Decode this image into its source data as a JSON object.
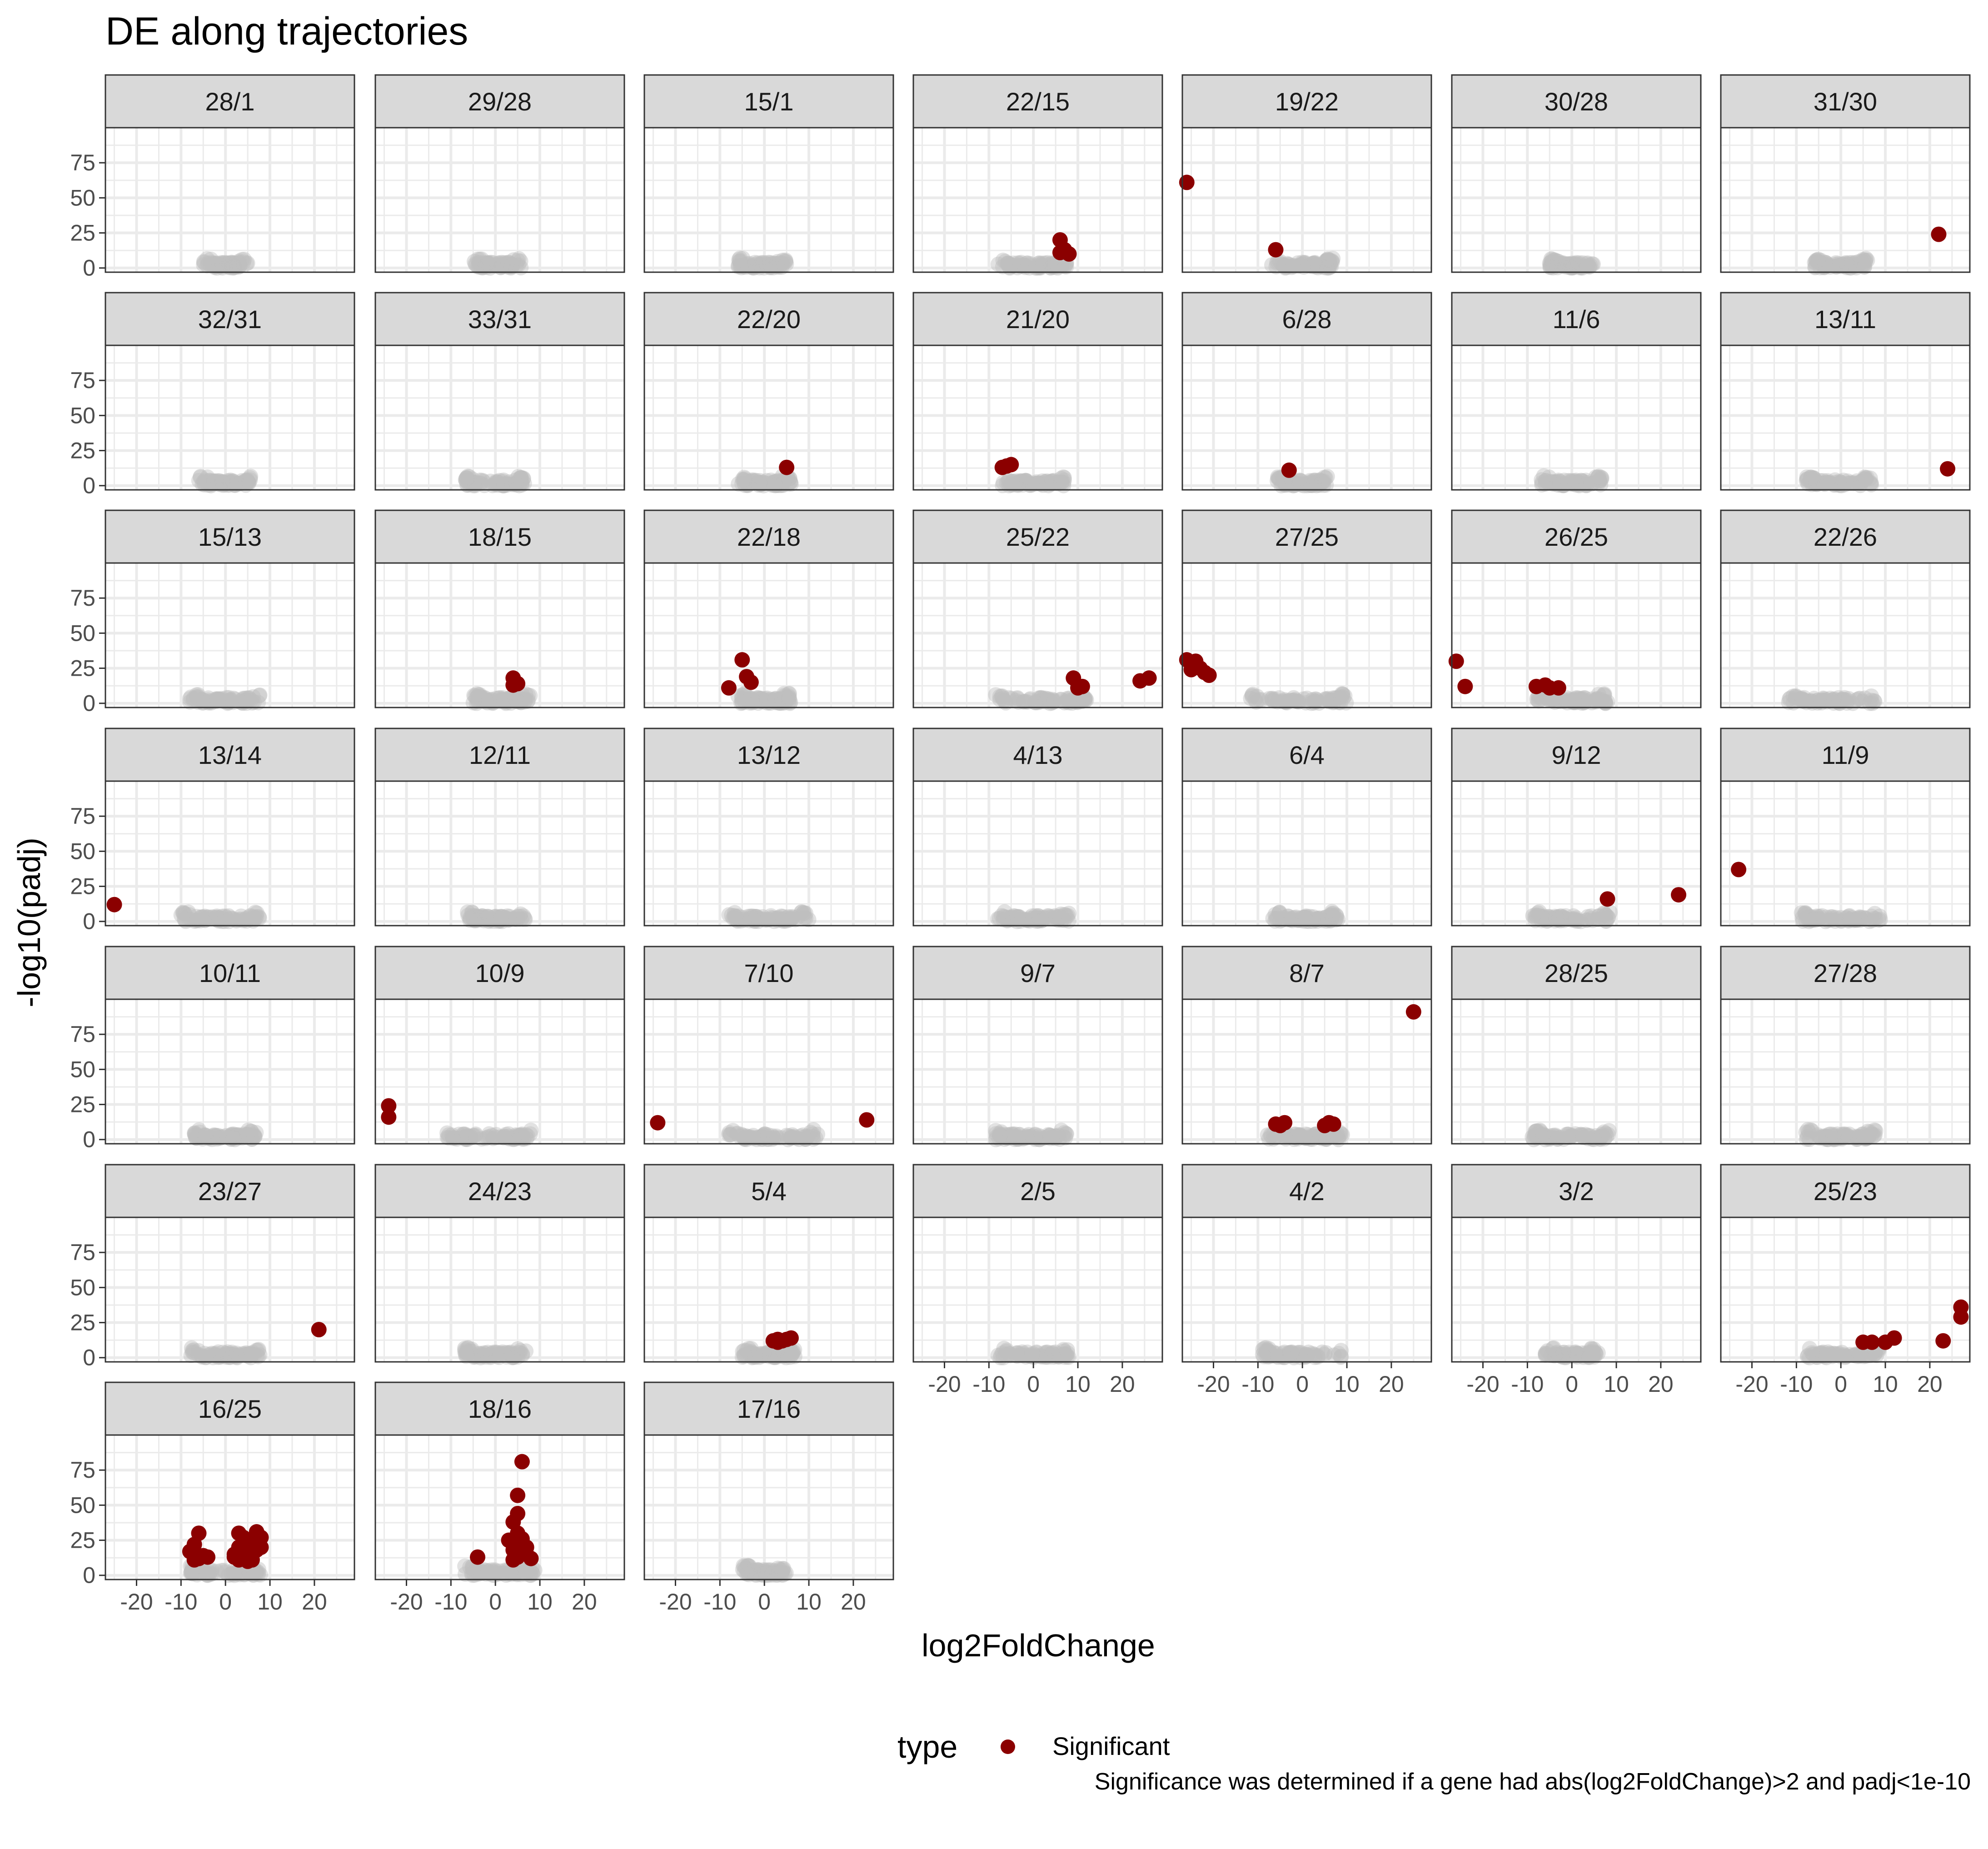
{
  "chart_data": {
    "type": "scatter",
    "title": "DE along trajectories",
    "xlabel": "log2FoldChange",
    "ylabel": "-log10(padj)",
    "xlim": [
      -27,
      29
    ],
    "ylim": [
      -3,
      100
    ],
    "x_ticks": [
      -20,
      -10,
      0,
      10,
      20
    ],
    "x_tick_labels": [
      "-20",
      "-10",
      "0",
      "10",
      "20"
    ],
    "y_ticks": [
      0,
      25,
      50,
      75
    ],
    "y_tick_labels": [
      "0",
      "25",
      "50",
      "75"
    ],
    "grid": true,
    "legend": {
      "title": "type",
      "position": "bottom",
      "entries": [
        {
          "label": "Significant",
          "color": "#8b0000"
        }
      ]
    },
    "caption": "Significance was determined if a gene had abs(log2FoldChange)>2 and padj<1e-10",
    "colors": {
      "significant": "#8b0000",
      "not_significant": "#bebebe",
      "strip_fill": "#d9d9d9",
      "grid": "#ebebeb",
      "panel_border": "#333333"
    },
    "panels": [
      {
        "label": "28/1",
        "bg": [
          -5,
          5
        ],
        "sig": []
      },
      {
        "label": "29/28",
        "bg": [
          -5,
          6
        ],
        "sig": []
      },
      {
        "label": "15/1",
        "bg": [
          -6,
          5
        ],
        "sig": []
      },
      {
        "label": "22/15",
        "bg": [
          -8,
          8
        ],
        "sig": [
          [
            6,
            20
          ],
          [
            7,
            13
          ],
          [
            8,
            10
          ],
          [
            6,
            11
          ]
        ]
      },
      {
        "label": "19/22",
        "bg": [
          -7,
          7
        ],
        "sig": [
          [
            -26,
            61
          ],
          [
            -6,
            13
          ]
        ]
      },
      {
        "label": "30/28",
        "bg": [
          -5,
          5
        ],
        "sig": []
      },
      {
        "label": "31/30",
        "bg": [
          -6,
          6
        ],
        "sig": [
          [
            22,
            24
          ]
        ]
      },
      {
        "label": "32/31",
        "bg": [
          -6,
          6
        ],
        "sig": []
      },
      {
        "label": "33/31",
        "bg": [
          -7,
          7
        ],
        "sig": []
      },
      {
        "label": "22/20",
        "bg": [
          -6,
          6
        ],
        "sig": [
          [
            5,
            13
          ]
        ]
      },
      {
        "label": "21/20",
        "bg": [
          -7,
          7
        ],
        "sig": [
          [
            -7,
            13
          ],
          [
            -6,
            14
          ],
          [
            -5,
            15
          ]
        ]
      },
      {
        "label": "6/28",
        "bg": [
          -6,
          6
        ],
        "sig": [
          [
            -3,
            11
          ]
        ]
      },
      {
        "label": "11/6",
        "bg": [
          -7,
          7
        ],
        "sig": []
      },
      {
        "label": "13/11",
        "bg": [
          -8,
          7
        ],
        "sig": [
          [
            24,
            12
          ]
        ]
      },
      {
        "label": "15/13",
        "bg": [
          -8,
          8
        ],
        "sig": []
      },
      {
        "label": "18/15",
        "bg": [
          -5,
          8
        ],
        "sig": [
          [
            4,
            18
          ],
          [
            4,
            13
          ],
          [
            5,
            14
          ]
        ]
      },
      {
        "label": "22/18",
        "bg": [
          -6,
          6
        ],
        "sig": [
          [
            -5,
            31
          ],
          [
            -4,
            19
          ],
          [
            -8,
            11
          ],
          [
            -3,
            15
          ]
        ]
      },
      {
        "label": "25/22",
        "bg": [
          -9,
          12
        ],
        "sig": [
          [
            9,
            18
          ],
          [
            11,
            12
          ],
          [
            26,
            18
          ],
          [
            24,
            16
          ],
          [
            10,
            11
          ]
        ]
      },
      {
        "label": "27/25",
        "bg": [
          -12,
          10
        ],
        "sig": [
          [
            -26,
            31
          ],
          [
            -24,
            27
          ],
          [
            -23,
            25
          ],
          [
            -22,
            22
          ],
          [
            -25,
            24
          ],
          [
            -24,
            30
          ],
          [
            -21,
            20
          ]
        ]
      },
      {
        "label": "26/25",
        "bg": [
          -8,
          8
        ],
        "sig": [
          [
            -26,
            30
          ],
          [
            -24,
            12
          ],
          [
            -8,
            12
          ],
          [
            -5,
            11
          ],
          [
            -3,
            11
          ],
          [
            -6,
            13
          ]
        ]
      },
      {
        "label": "22/26",
        "bg": [
          -12,
          8
        ],
        "sig": []
      },
      {
        "label": "13/14",
        "bg": [
          -10,
          8
        ],
        "sig": [
          [
            -25,
            12
          ]
        ]
      },
      {
        "label": "12/11",
        "bg": [
          -7,
          7
        ],
        "sig": []
      },
      {
        "label": "13/12",
        "bg": [
          -8,
          10
        ],
        "sig": []
      },
      {
        "label": "4/13",
        "bg": [
          -8,
          8
        ],
        "sig": []
      },
      {
        "label": "6/4",
        "bg": [
          -7,
          8
        ],
        "sig": []
      },
      {
        "label": "9/12",
        "bg": [
          -9,
          9
        ],
        "sig": [
          [
            8,
            16
          ],
          [
            24,
            19
          ]
        ]
      },
      {
        "label": "11/9",
        "bg": [
          -9,
          9
        ],
        "sig": [
          [
            -23,
            37
          ]
        ]
      },
      {
        "label": "10/11",
        "bg": [
          -7,
          7
        ],
        "sig": []
      },
      {
        "label": "10/9",
        "bg": [
          -11,
          8
        ],
        "sig": [
          [
            -24,
            24
          ],
          [
            -24,
            16
          ]
        ]
      },
      {
        "label": "7/10",
        "bg": [
          -8,
          12
        ],
        "sig": [
          [
            -24,
            12
          ],
          [
            23,
            14
          ]
        ]
      },
      {
        "label": "9/7",
        "bg": [
          -9,
          8
        ],
        "sig": []
      },
      {
        "label": "8/7",
        "bg": [
          -8,
          9
        ],
        "sig": [
          [
            25,
            91
          ],
          [
            -6,
            11
          ],
          [
            -5,
            10
          ],
          [
            -4,
            12
          ],
          [
            6,
            12
          ],
          [
            7,
            11
          ],
          [
            5,
            10
          ]
        ]
      },
      {
        "label": "28/25",
        "bg": [
          -9,
          9
        ],
        "sig": []
      },
      {
        "label": "27/28",
        "bg": [
          -8,
          8
        ],
        "sig": []
      },
      {
        "label": "23/27",
        "bg": [
          -8,
          8
        ],
        "sig": [
          [
            21,
            20
          ]
        ]
      },
      {
        "label": "24/23",
        "bg": [
          -7,
          7
        ],
        "sig": []
      },
      {
        "label": "5/4",
        "bg": [
          -5,
          7
        ],
        "sig": [
          [
            2,
            12
          ],
          [
            3,
            11
          ],
          [
            4,
            12
          ],
          [
            5,
            13
          ],
          [
            6,
            14
          ],
          [
            3,
            13
          ]
        ]
      },
      {
        "label": "2/5",
        "bg": [
          -8,
          8
        ],
        "sig": []
      },
      {
        "label": "4/2",
        "bg": [
          -9,
          9
        ],
        "sig": []
      },
      {
        "label": "3/2",
        "bg": [
          -6,
          6
        ],
        "sig": []
      },
      {
        "label": "25/23",
        "bg": [
          -9,
          9
        ],
        "sig": [
          [
            5,
            11
          ],
          [
            7,
            11
          ],
          [
            10,
            11
          ],
          [
            12,
            14
          ],
          [
            23,
            12
          ],
          [
            27,
            36
          ],
          [
            27,
            29
          ]
        ]
      },
      {
        "label": "16/25",
        "bg": [
          -8,
          8
        ],
        "sig": [
          [
            -6,
            30
          ],
          [
            -8,
            17
          ],
          [
            -7,
            22
          ],
          [
            -5,
            14
          ],
          [
            -6,
            12
          ],
          [
            -4,
            13
          ],
          [
            -7,
            11
          ],
          [
            3,
            30
          ],
          [
            4,
            27
          ],
          [
            6,
            25
          ],
          [
            7,
            31
          ],
          [
            8,
            27
          ],
          [
            3,
            20
          ],
          [
            5,
            22
          ],
          [
            2,
            15
          ],
          [
            4,
            12
          ],
          [
            6,
            15
          ],
          [
            7,
            18
          ],
          [
            5,
            10
          ],
          [
            3,
            11
          ],
          [
            2,
            13
          ],
          [
            8,
            20
          ],
          [
            6,
            11
          ]
        ]
      },
      {
        "label": "18/16",
        "bg": [
          -7,
          9
        ],
        "sig": [
          [
            6,
            81
          ],
          [
            5,
            57
          ],
          [
            5,
            44
          ],
          [
            4,
            38
          ],
          [
            3,
            25
          ],
          [
            4,
            18
          ],
          [
            5,
            13
          ],
          [
            6,
            22
          ],
          [
            7,
            15
          ],
          [
            8,
            12
          ],
          [
            -4,
            13
          ],
          [
            6,
            26
          ],
          [
            5,
            30
          ],
          [
            7,
            20
          ],
          [
            4,
            11
          ]
        ]
      },
      {
        "label": "17/16",
        "bg": [
          -5,
          5
        ],
        "sig": []
      }
    ]
  }
}
